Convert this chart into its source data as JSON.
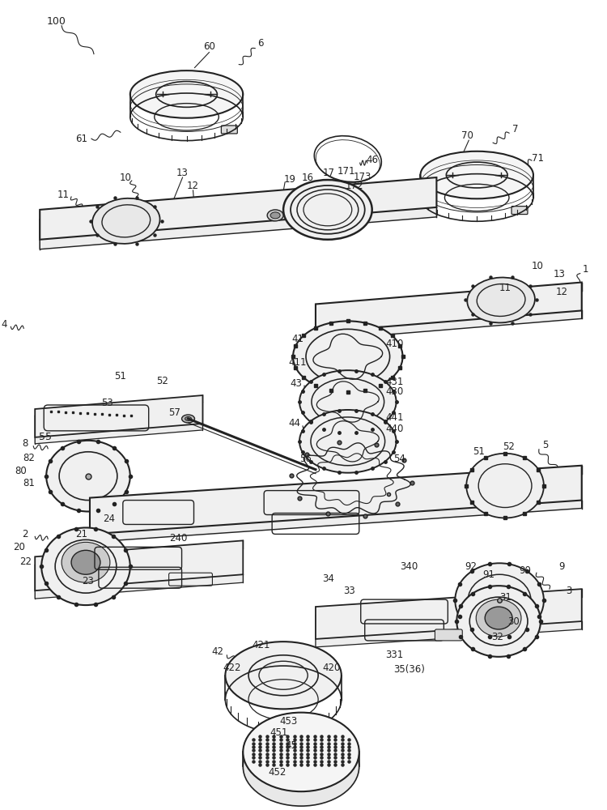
{
  "background_color": "#ffffff",
  "line_color": "#222222",
  "fig_width": 7.5,
  "fig_height": 10.0,
  "dpi": 100
}
